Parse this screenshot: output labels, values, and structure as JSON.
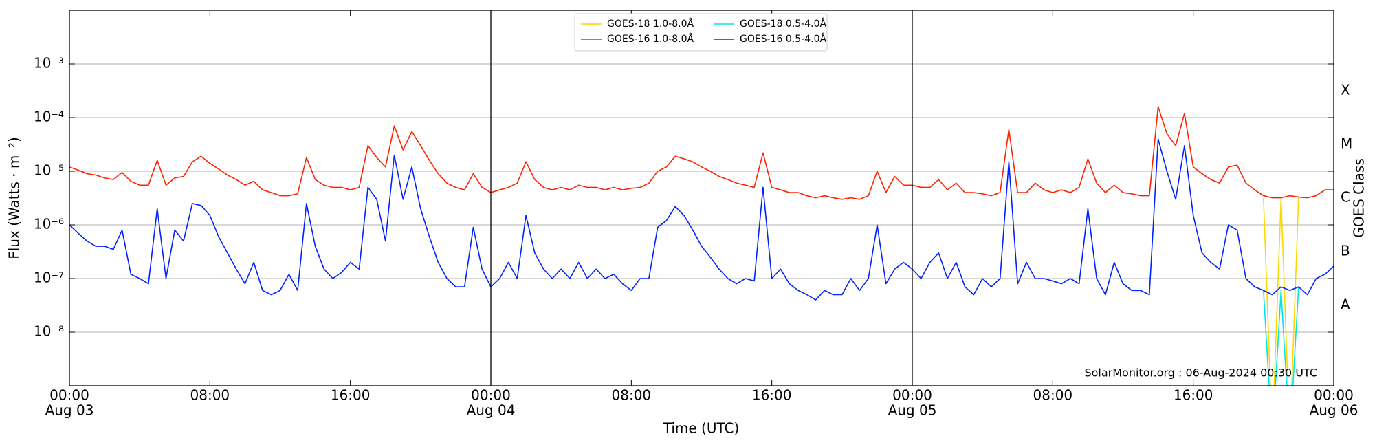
{
  "chart_data": {
    "type": "line",
    "xlabel": "Time (UTC)",
    "ylabel": "Flux (Watts · m⁻²)",
    "y2label": "GOES Class",
    "annotation": "SolarMonitor.org : 06-Aug-2024 00:30 UTC",
    "log_y": true,
    "grid": true,
    "legend": "upper center",
    "xlim": [
      "Aug 03 00:00",
      "Aug 06 00:00"
    ],
    "xticks": [
      {
        "value": "Aug 03 00:00",
        "label": "00:00"
      },
      {
        "value": "Aug 03 08:00",
        "label": "08:00"
      },
      {
        "value": "Aug 03 16:00",
        "label": "16:00"
      },
      {
        "value": "Aug 04 00:00",
        "label": "00:00"
      },
      {
        "value": "Aug 04 08:00",
        "label": "08:00"
      },
      {
        "value": "Aug 04 16:00",
        "label": "16:00"
      },
      {
        "value": "Aug 05 00:00",
        "label": "00:00"
      },
      {
        "value": "Aug 05 08:00",
        "label": "08:00"
      },
      {
        "value": "Aug 05 16:00",
        "label": "16:00"
      },
      {
        "value": "Aug 06 00:00",
        "label": "00:00"
      }
    ],
    "xdate_ticks": [
      {
        "value": "Aug 03 00:00",
        "label": "Aug 03"
      },
      {
        "value": "Aug 04 00:00",
        "label": "Aug 04"
      },
      {
        "value": "Aug 05 00:00",
        "label": "Aug 05"
      },
      {
        "value": "Aug 06 00:00",
        "label": "Aug 06"
      }
    ],
    "day_lines": [
      "Aug 04 00:00",
      "Aug 05 00:00"
    ],
    "ylim": [
      1e-09,
      0.01
    ],
    "yticks": [
      {
        "value": 1e-08,
        "label": "10⁻⁸"
      },
      {
        "value": 1e-07,
        "label": "10⁻⁷"
      },
      {
        "value": 1e-06,
        "label": "10⁻⁶"
      },
      {
        "value": 1e-05,
        "label": "10⁻⁵"
      },
      {
        "value": 0.0001,
        "label": "10⁻⁴"
      },
      {
        "value": 0.001,
        "label": "10⁻³"
      }
    ],
    "y2lim": [
      1e-09,
      0.01
    ],
    "y2ticks": [
      {
        "value": 3.162e-08,
        "label": "A"
      },
      {
        "value": 3.162e-07,
        "label": "B"
      },
      {
        "value": 3.162e-06,
        "label": "C"
      },
      {
        "value": 3.162e-05,
        "label": "M"
      },
      {
        "value": 0.0003162,
        "label": "X"
      }
    ],
    "x": [
      "Aug 03 00:00",
      "Aug 03 00:30",
      "Aug 03 01:00",
      "Aug 03 01:30",
      "Aug 03 02:00",
      "Aug 03 02:30",
      "Aug 03 03:00",
      "Aug 03 03:30",
      "Aug 03 04:00",
      "Aug 03 04:30",
      "Aug 03 05:00",
      "Aug 03 05:30",
      "Aug 03 06:00",
      "Aug 03 06:30",
      "Aug 03 07:00",
      "Aug 03 07:30",
      "Aug 03 08:00",
      "Aug 03 08:30",
      "Aug 03 09:00",
      "Aug 03 09:30",
      "Aug 03 10:00",
      "Aug 03 10:30",
      "Aug 03 11:00",
      "Aug 03 11:30",
      "Aug 03 12:00",
      "Aug 03 12:30",
      "Aug 03 13:00",
      "Aug 03 13:30",
      "Aug 03 14:00",
      "Aug 03 14:30",
      "Aug 03 15:00",
      "Aug 03 15:30",
      "Aug 03 16:00",
      "Aug 03 16:30",
      "Aug 03 17:00",
      "Aug 03 17:30",
      "Aug 03 18:00",
      "Aug 03 18:30",
      "Aug 03 19:00",
      "Aug 03 19:30",
      "Aug 03 20:00",
      "Aug 03 20:30",
      "Aug 03 21:00",
      "Aug 03 21:30",
      "Aug 03 22:00",
      "Aug 03 22:30",
      "Aug 03 23:00",
      "Aug 03 23:30",
      "Aug 04 00:00",
      "Aug 04 00:30",
      "Aug 04 01:00",
      "Aug 04 01:30",
      "Aug 04 02:00",
      "Aug 04 02:30",
      "Aug 04 03:00",
      "Aug 04 03:30",
      "Aug 04 04:00",
      "Aug 04 04:30",
      "Aug 04 05:00",
      "Aug 04 05:30",
      "Aug 04 06:00",
      "Aug 04 06:30",
      "Aug 04 07:00",
      "Aug 04 07:30",
      "Aug 04 08:00",
      "Aug 04 08:30",
      "Aug 04 09:00",
      "Aug 04 09:30",
      "Aug 04 10:00",
      "Aug 04 10:30",
      "Aug 04 11:00",
      "Aug 04 11:30",
      "Aug 04 12:00",
      "Aug 04 12:30",
      "Aug 04 13:00",
      "Aug 04 13:30",
      "Aug 04 14:00",
      "Aug 04 14:30",
      "Aug 04 15:00",
      "Aug 04 15:30",
      "Aug 04 16:00",
      "Aug 04 16:30",
      "Aug 04 17:00",
      "Aug 04 17:30",
      "Aug 04 18:00",
      "Aug 04 18:30",
      "Aug 04 19:00",
      "Aug 04 19:30",
      "Aug 04 20:00",
      "Aug 04 20:30",
      "Aug 04 21:00",
      "Aug 04 21:30",
      "Aug 04 22:00",
      "Aug 04 22:30",
      "Aug 04 23:00",
      "Aug 04 23:30",
      "Aug 05 00:00",
      "Aug 05 00:30",
      "Aug 05 01:00",
      "Aug 05 01:30",
      "Aug 05 02:00",
      "Aug 05 02:30",
      "Aug 05 03:00",
      "Aug 05 03:30",
      "Aug 05 04:00",
      "Aug 05 04:30",
      "Aug 05 05:00",
      "Aug 05 05:30",
      "Aug 05 06:00",
      "Aug 05 06:30",
      "Aug 05 07:00",
      "Aug 05 07:30",
      "Aug 05 08:00",
      "Aug 05 08:30",
      "Aug 05 09:00",
      "Aug 05 09:30",
      "Aug 05 10:00",
      "Aug 05 10:30",
      "Aug 05 11:00",
      "Aug 05 11:30",
      "Aug 05 12:00",
      "Aug 05 12:30",
      "Aug 05 13:00",
      "Aug 05 13:30",
      "Aug 05 14:00",
      "Aug 05 14:30",
      "Aug 05 15:00",
      "Aug 05 15:30",
      "Aug 05 16:00",
      "Aug 05 16:30",
      "Aug 05 17:00",
      "Aug 05 17:30",
      "Aug 05 18:00",
      "Aug 05 18:30",
      "Aug 05 19:00",
      "Aug 05 19:30",
      "Aug 05 20:00",
      "Aug 05 20:30",
      "Aug 05 21:00",
      "Aug 05 21:30",
      "Aug 05 22:00",
      "Aug 05 22:30",
      "Aug 05 23:00",
      "Aug 05 23:30",
      "Aug 06 00:00"
    ],
    "series": [
      {
        "name": "GOES-18 1.0-8.0Å",
        "color": "#ffd700",
        "values": [
          null,
          null,
          null,
          null,
          null,
          null,
          null,
          null,
          null,
          null,
          null,
          null,
          null,
          null,
          null,
          null,
          null,
          null,
          null,
          null,
          null,
          null,
          null,
          null,
          null,
          null,
          null,
          null,
          null,
          null,
          null,
          null,
          null,
          null,
          null,
          null,
          null,
          null,
          null,
          null,
          null,
          null,
          null,
          null,
          null,
          null,
          null,
          null,
          null,
          null,
          null,
          null,
          null,
          null,
          null,
          null,
          null,
          null,
          null,
          null,
          null,
          null,
          null,
          null,
          null,
          null,
          null,
          null,
          null,
          null,
          null,
          null,
          null,
          null,
          null,
          null,
          null,
          null,
          null,
          null,
          null,
          null,
          null,
          null,
          null,
          null,
          null,
          null,
          null,
          null,
          null,
          null,
          null,
          null,
          null,
          null,
          null,
          null,
          null,
          null,
          null,
          null,
          null,
          null,
          null,
          null,
          null,
          null,
          null,
          null,
          null,
          null,
          null,
          null,
          null,
          null,
          null,
          null,
          null,
          null,
          null,
          null,
          null,
          null,
          null,
          null,
          null,
          null,
          null,
          null,
          null,
          null,
          null,
          null,
          null,
          null,
          3.2e-06,
          1e-10,
          3.2e-06,
          1e-10,
          3.3e-06,
          null,
          null,
          null,
          null
        ]
      },
      {
        "name": "GOES-16 1.0-8.0Å",
        "color": "#ff2200",
        "values": [
          1.2e-05,
          1.05e-05,
          9e-06,
          8.5e-06,
          7.5e-06,
          7e-06,
          9.5e-06,
          6.5e-06,
          5.5e-06,
          5.5e-06,
          1.6e-05,
          5.5e-06,
          7.5e-06,
          8e-06,
          1.5e-05,
          1.9e-05,
          1.4e-05,
          1.1e-05,
          8.5e-06,
          7e-06,
          5.5e-06,
          6.5e-06,
          4.5e-06,
          4e-06,
          3.5e-06,
          3.5e-06,
          3.8e-06,
          1.8e-05,
          7e-06,
          5.5e-06,
          5e-06,
          5e-06,
          4.5e-06,
          5e-06,
          3e-05,
          1.8e-05,
          1.2e-05,
          7e-05,
          2.5e-05,
          5.5e-05,
          3e-05,
          1.6e-05,
          9e-06,
          6e-06,
          5e-06,
          4.5e-06,
          9e-06,
          5e-06,
          4e-06,
          4.5e-06,
          5e-06,
          6e-06,
          1.5e-05,
          7e-06,
          5e-06,
          4.5e-06,
          5e-06,
          4.5e-06,
          5.5e-06,
          5e-06,
          5e-06,
          4.5e-06,
          5e-06,
          4.5e-06,
          4.8e-06,
          5e-06,
          6e-06,
          1e-05,
          1.2e-05,
          1.9e-05,
          1.7e-05,
          1.5e-05,
          1.2e-05,
          1e-05,
          8e-06,
          7e-06,
          6e-06,
          5.5e-06,
          5e-06,
          2.2e-05,
          5e-06,
          4.5e-06,
          4e-06,
          4e-06,
          3.5e-06,
          3.2e-06,
          3.5e-06,
          3.2e-06,
          3e-06,
          3.2e-06,
          3e-06,
          3.5e-06,
          1e-05,
          4e-06,
          8e-06,
          5.5e-06,
          5.5e-06,
          5e-06,
          5e-06,
          7e-06,
          4.5e-06,
          6e-06,
          4e-06,
          4e-06,
          3.8e-06,
          3.5e-06,
          4e-06,
          6e-05,
          4e-06,
          4e-06,
          6e-06,
          4.5e-06,
          4e-06,
          4.5e-06,
          4e-06,
          5e-06,
          1.7e-05,
          6e-06,
          4e-06,
          5.5e-06,
          4e-06,
          3.8e-06,
          3.5e-06,
          3.5e-06,
          0.00016,
          5e-05,
          3e-05,
          0.00012,
          1.2e-05,
          9e-06,
          7e-06,
          6e-06,
          1.2e-05,
          1.3e-05,
          6e-06,
          4.5e-06,
          3.5e-06,
          3.2e-06,
          3.2e-06,
          3.5e-06,
          3.3e-06,
          3.2e-06,
          3.5e-06,
          4.5e-06,
          4.5e-06
        ]
      },
      {
        "name": "GOES-18 0.5-4.0Å",
        "color": "#00e5e5",
        "values": [
          null,
          null,
          null,
          null,
          null,
          null,
          null,
          null,
          null,
          null,
          null,
          null,
          null,
          null,
          null,
          null,
          null,
          null,
          null,
          null,
          null,
          null,
          null,
          null,
          null,
          null,
          null,
          null,
          null,
          null,
          null,
          null,
          null,
          null,
          null,
          null,
          null,
          null,
          null,
          null,
          null,
          null,
          null,
          null,
          null,
          null,
          null,
          null,
          null,
          null,
          null,
          null,
          null,
          null,
          null,
          null,
          null,
          null,
          null,
          null,
          null,
          null,
          null,
          null,
          null,
          null,
          null,
          null,
          null,
          null,
          null,
          null,
          null,
          null,
          null,
          null,
          null,
          null,
          null,
          null,
          null,
          null,
          null,
          null,
          null,
          null,
          null,
          null,
          null,
          null,
          null,
          null,
          null,
          null,
          null,
          null,
          null,
          null,
          null,
          null,
          null,
          null,
          null,
          null,
          null,
          null,
          null,
          null,
          null,
          null,
          null,
          null,
          null,
          null,
          null,
          null,
          null,
          null,
          null,
          null,
          null,
          null,
          null,
          null,
          null,
          null,
          null,
          null,
          null,
          null,
          null,
          null,
          null,
          null,
          null,
          null,
          6e-08,
          1e-10,
          6e-08,
          1e-10,
          7e-08,
          null,
          null,
          null,
          null
        ]
      },
      {
        "name": "GOES-16 0.5-4.0Å",
        "color": "#0022ff",
        "values": [
          1e-06,
          7e-07,
          5e-07,
          4e-07,
          4e-07,
          3.5e-07,
          8e-07,
          1.2e-07,
          1e-07,
          8e-08,
          2e-06,
          1e-07,
          8e-07,
          5e-07,
          2.5e-06,
          2.3e-06,
          1.5e-06,
          6e-07,
          3e-07,
          1.5e-07,
          8e-08,
          2e-07,
          6e-08,
          5e-08,
          6e-08,
          1.2e-07,
          6e-08,
          2.5e-06,
          4e-07,
          1.5e-07,
          1e-07,
          1.3e-07,
          2e-07,
          1.5e-07,
          5e-06,
          3e-06,
          5e-07,
          2e-05,
          3e-06,
          1.2e-05,
          2e-06,
          6e-07,
          2e-07,
          1e-07,
          7e-08,
          7e-08,
          9e-07,
          1.5e-07,
          7e-08,
          1e-07,
          2e-07,
          1e-07,
          1.5e-06,
          3e-07,
          1.5e-07,
          1e-07,
          1.5e-07,
          1e-07,
          2e-07,
          1e-07,
          1.5e-07,
          1e-07,
          1.2e-07,
          8e-08,
          6e-08,
          1e-07,
          1e-07,
          9e-07,
          1.2e-06,
          2.2e-06,
          1.5e-06,
          8e-07,
          4e-07,
          2.5e-07,
          1.5e-07,
          1e-07,
          8e-08,
          1e-07,
          9e-08,
          5e-06,
          1e-07,
          1.5e-07,
          8e-08,
          6e-08,
          5e-08,
          4e-08,
          6e-08,
          5e-08,
          5e-08,
          1e-07,
          6e-08,
          1e-07,
          1e-06,
          8e-08,
          1.5e-07,
          2e-07,
          1.5e-07,
          1e-07,
          2e-07,
          3e-07,
          1e-07,
          2e-07,
          7e-08,
          5e-08,
          1e-07,
          7e-08,
          1e-07,
          1.5e-05,
          8e-08,
          2e-07,
          1e-07,
          1e-07,
          9e-08,
          8e-08,
          1e-07,
          8e-08,
          2e-06,
          1e-07,
          5e-08,
          2e-07,
          8e-08,
          6e-08,
          6e-08,
          5e-08,
          4e-05,
          1e-05,
          3e-06,
          3e-05,
          1.5e-06,
          3e-07,
          2e-07,
          1.5e-07,
          1e-06,
          8e-07,
          1e-07,
          7e-08,
          6e-08,
          5e-08,
          7e-08,
          6e-08,
          7e-08,
          5e-08,
          1e-07,
          1.2e-07,
          1.7e-07
        ]
      }
    ]
  }
}
